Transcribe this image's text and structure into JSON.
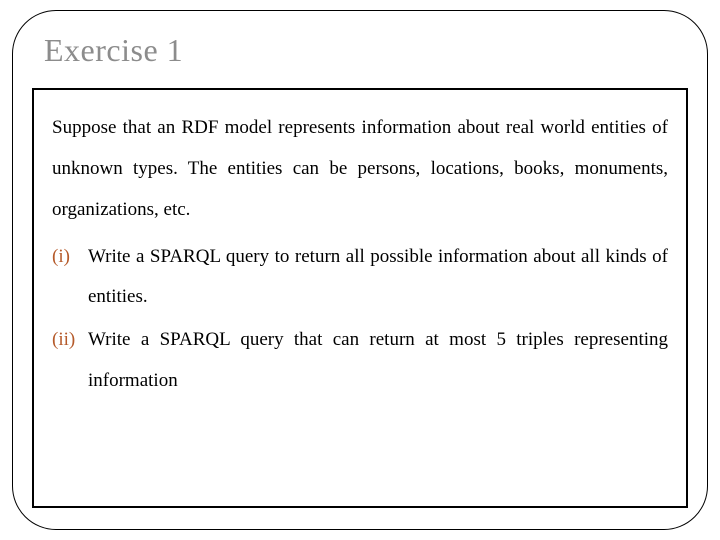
{
  "slide": {
    "title": "Exercise 1",
    "title_color": "#8c8c8c",
    "title_fontsize": 32,
    "frame_border_color": "#000000",
    "frame_border_radius": 44,
    "box_border_color": "#000000",
    "background_color": "#ffffff",
    "body_fontsize": 19,
    "body_color": "#000000",
    "line_height": 2.15,
    "intro": "Suppose that an RDF model represents information about real world entities of unknown types. The entities can be persons, locations, books, monuments, organizations, etc.",
    "items": [
      {
        "marker": "(i)",
        "marker_color": "#b55a2a",
        "text": "Write a SPARQL query to return all possible information about all kinds of entities."
      },
      {
        "marker": "(ii)",
        "marker_color": "#b55a2a",
        "text": "Write a SPARQL query that can return at most 5 triples representing information"
      }
    ]
  }
}
